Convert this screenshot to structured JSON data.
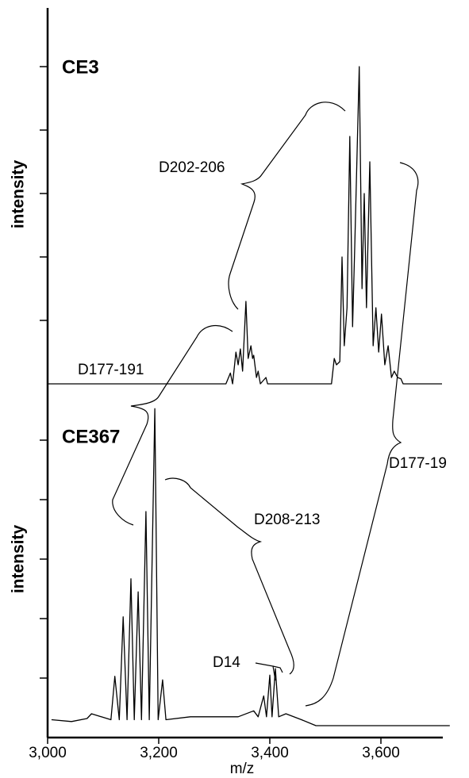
{
  "chart_data": [
    {
      "type": "line",
      "label": "CE3",
      "ylabel": "intensity",
      "color": "#000000",
      "xlim": [
        3000,
        3730
      ],
      "ylim": [
        0,
        6
      ],
      "yticks": [
        1,
        2,
        3,
        4,
        5
      ],
      "annotations": [
        "D202-206",
        "D177-191",
        "D177-19"
      ],
      "x": [
        3000,
        3321,
        3329,
        3333,
        3339,
        3343,
        3347,
        3351,
        3357,
        3361,
        3366,
        3369,
        3371,
        3376,
        3379,
        3383,
        3393,
        3396,
        3511,
        3516,
        3520,
        3526,
        3530,
        3534,
        3539,
        3544,
        3549,
        3553,
        3561,
        3566,
        3570,
        3574,
        3580,
        3586,
        3591,
        3596,
        3601,
        3607,
        3613,
        3619,
        3624,
        3630,
        3636,
        3640,
        3710
      ],
      "values": [
        0,
        0,
        0.17,
        0,
        0.5,
        0.3,
        0.55,
        0.2,
        1.3,
        0.4,
        0.6,
        0.4,
        0.45,
        0.1,
        0.2,
        0,
        0.1,
        0,
        0,
        0.4,
        0.3,
        0.35,
        2.0,
        0.6,
        1.2,
        3.9,
        0.9,
        2.2,
        5.0,
        1.5,
        3.0,
        1.2,
        3.5,
        0.6,
        1.2,
        0.5,
        1.1,
        0.3,
        0.6,
        0.1,
        0.2,
        0.1,
        0.08,
        0,
        0
      ]
    },
    {
      "type": "line",
      "label": "CE367",
      "ylabel": "intensity",
      "xlabel": "m/z",
      "color": "#000000",
      "xlim": [
        3000,
        3730
      ],
      "ylim": [
        0,
        6
      ],
      "yticks": [
        1,
        2,
        3,
        4,
        5
      ],
      "xticks": [
        {
          "value": 3000,
          "label": "3,000"
        },
        {
          "value": 3200,
          "label": "3,200"
        },
        {
          "value": 3400,
          "label": "3,400"
        },
        {
          "value": 3600,
          "label": "3,600"
        }
      ],
      "annotations": [
        "D208-213",
        "D14"
      ],
      "x": [
        3007,
        3043,
        3071,
        3079,
        3114,
        3121,
        3129,
        3136,
        3143,
        3150,
        3156,
        3163,
        3169,
        3177,
        3183,
        3193,
        3199,
        3207,
        3213,
        3257,
        3343,
        3371,
        3379,
        3389,
        3394,
        3400,
        3404,
        3410,
        3416,
        3429,
        3457,
        3483,
        3724
      ],
      "values": [
        0.3,
        0.27,
        0.32,
        0.4,
        0.3,
        1.03,
        0.3,
        2.03,
        0.3,
        2.67,
        0.3,
        2.45,
        0.3,
        3.8,
        0.3,
        5.53,
        0.3,
        0.97,
        0.3,
        0.35,
        0.35,
        0.45,
        0.35,
        0.7,
        0.35,
        1.05,
        0.35,
        1.16,
        0.35,
        0.4,
        0.3,
        0.2,
        0.2
      ]
    }
  ]
}
